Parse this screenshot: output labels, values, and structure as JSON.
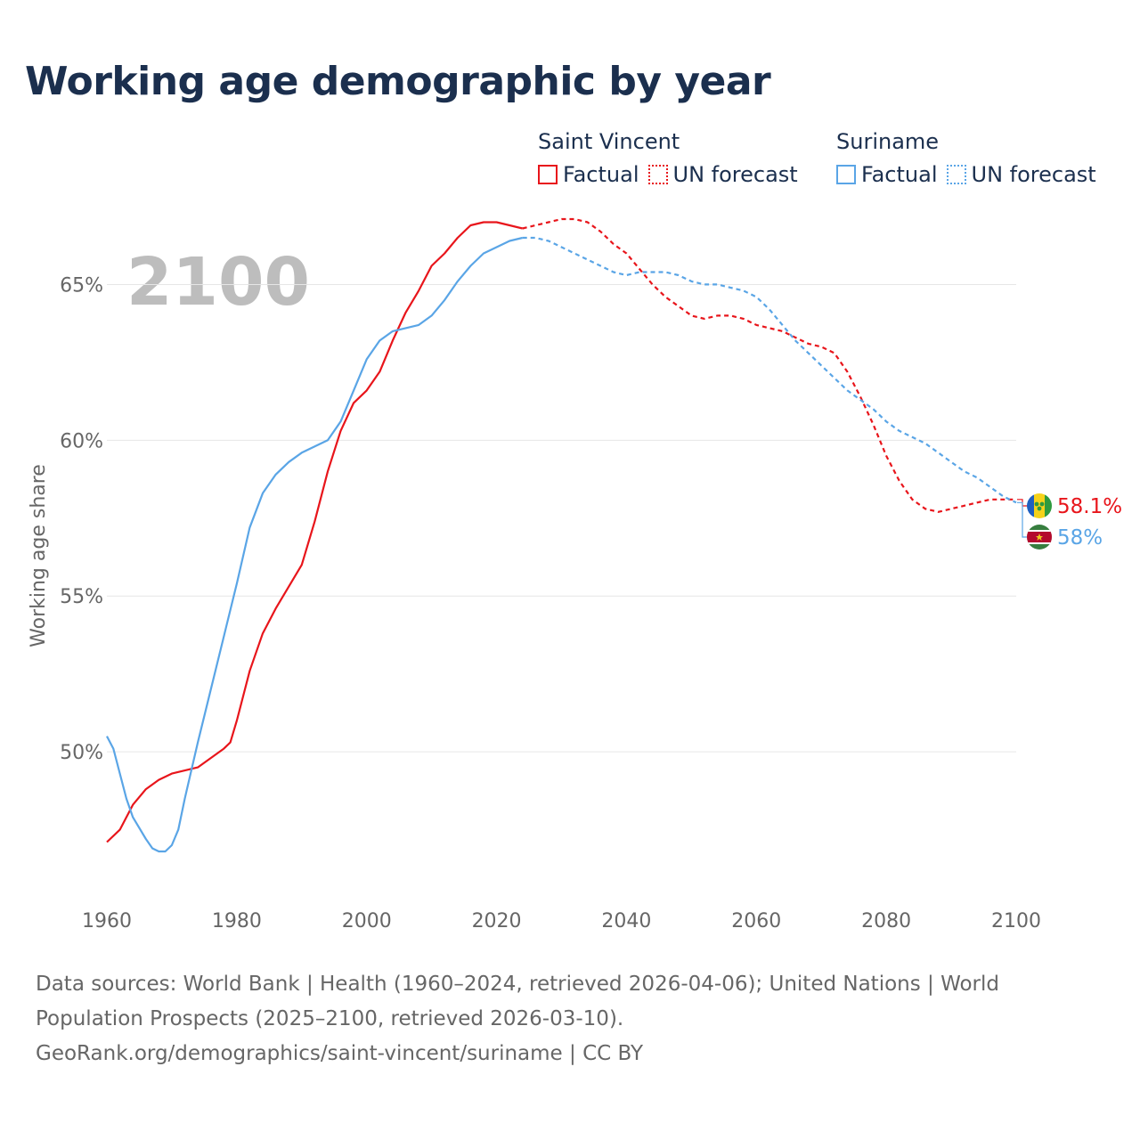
{
  "title": "Working age demographic by year",
  "legend": {
    "groups": [
      {
        "name": "Saint Vincent",
        "color": "#e8151b",
        "items": [
          {
            "label": "Factual",
            "style": "solid"
          },
          {
            "label": "UN forecast",
            "style": "dotted"
          }
        ]
      },
      {
        "name": "Suriname",
        "color": "#5aa5e6",
        "items": [
          {
            "label": "Factual",
            "style": "solid"
          },
          {
            "label": "UN forecast",
            "style": "dotted"
          }
        ]
      }
    ]
  },
  "footer": {
    "sources": "Data sources: World Bank | Health (1960–2024, retrieved 2026-04-06); United Nations | World Population Prospects (2025–2100, retrieved 2026-03-10).",
    "attribution": "GeoRank.org/demographics/saint-vincent/suriname | CC BY"
  },
  "chart_data": {
    "type": "line",
    "year_watermark": "2100",
    "ylabel": "Working age share",
    "xlabel": "",
    "xlim": [
      1960,
      2100
    ],
    "ylim": [
      45.2,
      67.5
    ],
    "x_ticks": [
      1960,
      1980,
      2000,
      2020,
      2040,
      2060,
      2080,
      2100
    ],
    "x_tick_labels": [
      "1960",
      "1980",
      "2000",
      "2020",
      "2040",
      "2060",
      "2080",
      "2100"
    ],
    "y_ticks": [
      50,
      55,
      60,
      65
    ],
    "y_tick_labels": [
      "50%",
      "55%",
      "60%",
      "65%"
    ],
    "grid": true,
    "factual_until": 2024,
    "series": [
      {
        "name": "Saint Vincent",
        "color": "#e8151b",
        "end_label": "58.1%",
        "points": [
          [
            1960,
            47.1
          ],
          [
            1962,
            47.5
          ],
          [
            1964,
            48.3
          ],
          [
            1966,
            48.8
          ],
          [
            1968,
            49.1
          ],
          [
            1970,
            49.3
          ],
          [
            1972,
            49.4
          ],
          [
            1974,
            49.5
          ],
          [
            1976,
            49.8
          ],
          [
            1978,
            50.1
          ],
          [
            1979,
            50.3
          ],
          [
            1980,
            51.0
          ],
          [
            1982,
            52.6
          ],
          [
            1984,
            53.8
          ],
          [
            1986,
            54.6
          ],
          [
            1988,
            55.3
          ],
          [
            1990,
            56.0
          ],
          [
            1992,
            57.4
          ],
          [
            1994,
            59.0
          ],
          [
            1996,
            60.3
          ],
          [
            1998,
            61.2
          ],
          [
            2000,
            61.6
          ],
          [
            2002,
            62.2
          ],
          [
            2004,
            63.2
          ],
          [
            2006,
            64.1
          ],
          [
            2008,
            64.8
          ],
          [
            2010,
            65.6
          ],
          [
            2012,
            66.0
          ],
          [
            2014,
            66.5
          ],
          [
            2016,
            66.9
          ],
          [
            2018,
            67.0
          ],
          [
            2020,
            67.0
          ],
          [
            2022,
            66.9
          ],
          [
            2024,
            66.8
          ],
          [
            2026,
            66.9
          ],
          [
            2028,
            67.0
          ],
          [
            2030,
            67.1
          ],
          [
            2032,
            67.1
          ],
          [
            2034,
            67.0
          ],
          [
            2036,
            66.7
          ],
          [
            2038,
            66.3
          ],
          [
            2040,
            66.0
          ],
          [
            2042,
            65.5
          ],
          [
            2044,
            65.0
          ],
          [
            2046,
            64.6
          ],
          [
            2048,
            64.3
          ],
          [
            2050,
            64.0
          ],
          [
            2052,
            63.9
          ],
          [
            2054,
            64.0
          ],
          [
            2056,
            64.0
          ],
          [
            2058,
            63.9
          ],
          [
            2060,
            63.7
          ],
          [
            2062,
            63.6
          ],
          [
            2064,
            63.5
          ],
          [
            2066,
            63.3
          ],
          [
            2068,
            63.1
          ],
          [
            2070,
            63.0
          ],
          [
            2072,
            62.8
          ],
          [
            2074,
            62.2
          ],
          [
            2076,
            61.4
          ],
          [
            2078,
            60.5
          ],
          [
            2080,
            59.5
          ],
          [
            2082,
            58.7
          ],
          [
            2084,
            58.1
          ],
          [
            2086,
            57.8
          ],
          [
            2088,
            57.7
          ],
          [
            2090,
            57.8
          ],
          [
            2092,
            57.9
          ],
          [
            2094,
            58.0
          ],
          [
            2096,
            58.1
          ],
          [
            2098,
            58.1
          ],
          [
            2100,
            58.1
          ]
        ]
      },
      {
        "name": "Suriname",
        "color": "#5aa5e6",
        "end_label": "58%",
        "points": [
          [
            1960,
            50.5
          ],
          [
            1961,
            50.1
          ],
          [
            1962,
            49.3
          ],
          [
            1963,
            48.5
          ],
          [
            1964,
            47.9
          ],
          [
            1966,
            47.2
          ],
          [
            1967,
            46.9
          ],
          [
            1968,
            46.8
          ],
          [
            1969,
            46.8
          ],
          [
            1970,
            47.0
          ],
          [
            1971,
            47.5
          ],
          [
            1972,
            48.5
          ],
          [
            1974,
            50.3
          ],
          [
            1976,
            52.0
          ],
          [
            1978,
            53.7
          ],
          [
            1980,
            55.4
          ],
          [
            1982,
            57.2
          ],
          [
            1984,
            58.3
          ],
          [
            1986,
            58.9
          ],
          [
            1988,
            59.3
          ],
          [
            1990,
            59.6
          ],
          [
            1992,
            59.8
          ],
          [
            1994,
            60.0
          ],
          [
            1996,
            60.6
          ],
          [
            1998,
            61.6
          ],
          [
            2000,
            62.6
          ],
          [
            2002,
            63.2
          ],
          [
            2004,
            63.5
          ],
          [
            2006,
            63.6
          ],
          [
            2008,
            63.7
          ],
          [
            2010,
            64.0
          ],
          [
            2012,
            64.5
          ],
          [
            2014,
            65.1
          ],
          [
            2016,
            65.6
          ],
          [
            2018,
            66.0
          ],
          [
            2020,
            66.2
          ],
          [
            2022,
            66.4
          ],
          [
            2024,
            66.5
          ],
          [
            2026,
            66.5
          ],
          [
            2028,
            66.4
          ],
          [
            2030,
            66.2
          ],
          [
            2032,
            66.0
          ],
          [
            2034,
            65.8
          ],
          [
            2036,
            65.6
          ],
          [
            2038,
            65.4
          ],
          [
            2040,
            65.3
          ],
          [
            2042,
            65.4
          ],
          [
            2044,
            65.4
          ],
          [
            2046,
            65.4
          ],
          [
            2048,
            65.3
          ],
          [
            2050,
            65.1
          ],
          [
            2052,
            65.0
          ],
          [
            2054,
            65.0
          ],
          [
            2056,
            64.9
          ],
          [
            2058,
            64.8
          ],
          [
            2060,
            64.6
          ],
          [
            2062,
            64.2
          ],
          [
            2064,
            63.7
          ],
          [
            2066,
            63.2
          ],
          [
            2068,
            62.8
          ],
          [
            2070,
            62.4
          ],
          [
            2072,
            62.0
          ],
          [
            2074,
            61.6
          ],
          [
            2076,
            61.3
          ],
          [
            2078,
            61.0
          ],
          [
            2080,
            60.6
          ],
          [
            2082,
            60.3
          ],
          [
            2084,
            60.1
          ],
          [
            2086,
            59.9
          ],
          [
            2088,
            59.6
          ],
          [
            2090,
            59.3
          ],
          [
            2092,
            59.0
          ],
          [
            2094,
            58.8
          ],
          [
            2096,
            58.5
          ],
          [
            2098,
            58.2
          ],
          [
            2100,
            58.0
          ]
        ]
      }
    ]
  }
}
